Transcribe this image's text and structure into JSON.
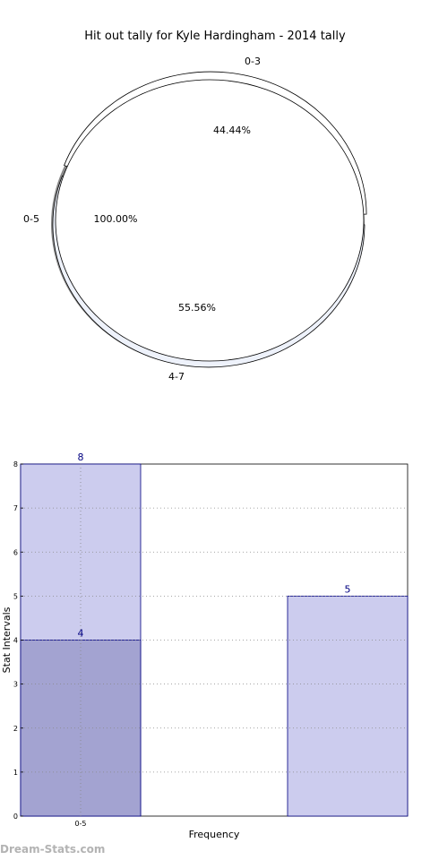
{
  "chart_data": [
    {
      "type": "pie",
      "title": "Hit out tally for Kyle Hardingham - 2014 tally",
      "rings": [
        {
          "name": "outer",
          "slices": [
            {
              "label": "0-3",
              "value": 44.44,
              "pct_label": "44.44%",
              "color": "#ffffff"
            },
            {
              "label": "4-7",
              "value": 55.56,
              "pct_label": "55.56%",
              "color": "#eef2fb"
            }
          ]
        },
        {
          "name": "inner",
          "slices": [
            {
              "label": "0-5",
              "value": 100.0,
              "pct_label": "100.00%",
              "color": "#ffffff"
            }
          ]
        }
      ],
      "shadow": true
    },
    {
      "type": "bar",
      "xlabel": "Frequency",
      "ylabel": "Stat Intervals",
      "ylim": [
        0,
        8
      ],
      "yticks": [
        "0",
        "1",
        "2",
        "3",
        "4",
        "5",
        "6",
        "7",
        "8"
      ],
      "xtick_labels": [
        "0-5"
      ],
      "grid": true,
      "bars": [
        {
          "slot": 0,
          "value": 8,
          "label": "8",
          "color": "#ccccee"
        },
        {
          "slot": 0,
          "value": 4,
          "label": "4",
          "color": "#a3a3d1"
        },
        {
          "slot": 2,
          "value": 5,
          "label": "5",
          "color": "#ccccee"
        }
      ],
      "slots": 3
    }
  ],
  "watermark": "Dream-Stats.com"
}
